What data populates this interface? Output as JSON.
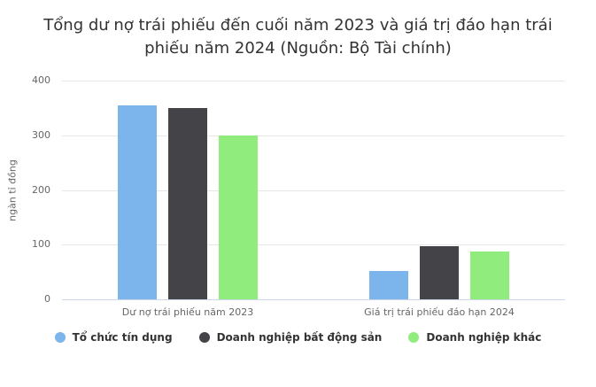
{
  "chart_data": {
    "type": "bar",
    "title": "Tổng dư nợ trái phiếu đến cuối năm 2023 và giá trị đáo hạn trái phiếu năm 2024 (Nguồn: Bộ Tài chính)",
    "xlabel": "",
    "ylabel": "ngàn tỉ đồng",
    "categories": [
      "Dư nợ trái phiếu năm 2023",
      "Giá trị trái phiếu đáo hạn 2024"
    ],
    "series": [
      {
        "name": "Tổ chức tín dụng",
        "color": "#7cb5ec",
        "values": [
          355,
          52
        ]
      },
      {
        "name": "Doanh nghiệp bất động sản",
        "color": "#434348",
        "values": [
          350,
          98
        ]
      },
      {
        "name": "Doanh nghiệp khác",
        "color": "#90ed7d",
        "values": [
          300,
          87
        ]
      }
    ],
    "ylim": [
      0,
      400
    ],
    "yticks": [
      0,
      100,
      200,
      300,
      400
    ],
    "grid": true,
    "legend_position": "bottom",
    "colors": {
      "background": "#ffffff",
      "grid": "#e6e6e6",
      "axis_line": "#ccd6eb",
      "title_text": "#333333",
      "tick_text": "#666666",
      "legend_text": "#333333"
    }
  }
}
